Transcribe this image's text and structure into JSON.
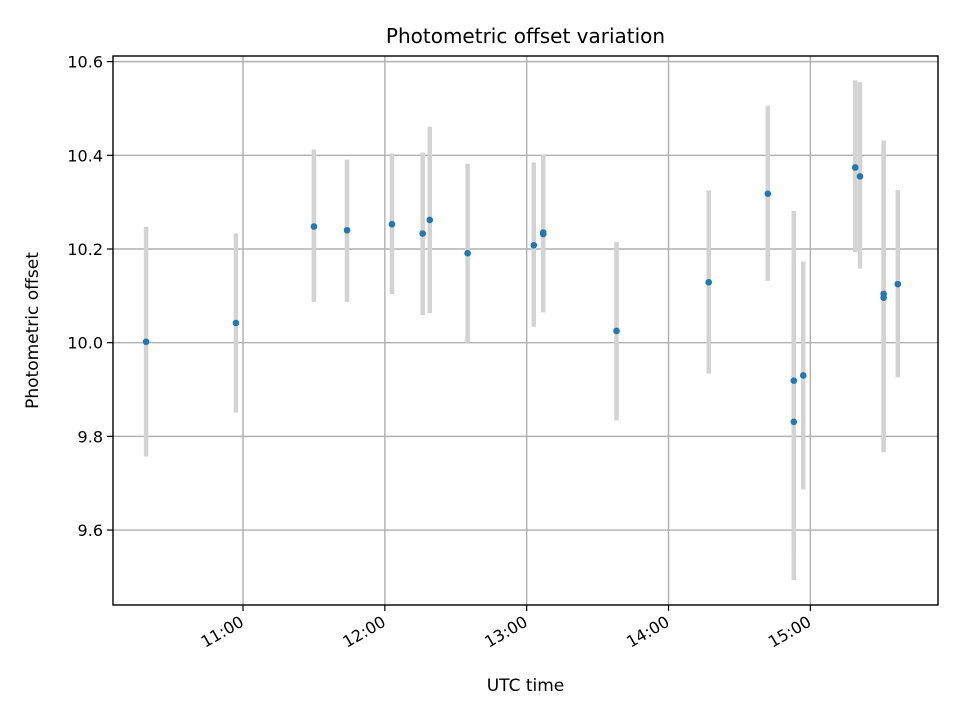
{
  "chart_data": {
    "type": "scatter",
    "title": "Photometric offset variation",
    "xlabel": "UTC time",
    "ylabel": "Photometric offset",
    "xlim": [
      "10:05",
      "15:54"
    ],
    "ylim": [
      9.44,
      10.612
    ],
    "x_ticks": [
      "11:00",
      "12:00",
      "13:00",
      "14:00",
      "15:00"
    ],
    "y_ticks": [
      9.6,
      9.8,
      10.0,
      10.2,
      10.4,
      10.6
    ],
    "grid": true,
    "series": [
      {
        "marker_color": "#1f77b4",
        "errorbar_color": "#d3d3d3",
        "points": [
          {
            "x": "10:19",
            "y": 10.002,
            "low": 9.757,
            "high": 10.247
          },
          {
            "x": "10:57",
            "y": 10.042,
            "low": 9.851,
            "high": 10.233
          },
          {
            "x": "11:30",
            "y": 10.248,
            "low": 10.087,
            "high": 10.412
          },
          {
            "x": "11:44",
            "y": 10.24,
            "low": 10.087,
            "high": 10.391
          },
          {
            "x": "12:03",
            "y": 10.253,
            "low": 10.104,
            "high": 10.404
          },
          {
            "x": "12:16",
            "y": 10.233,
            "low": 10.059,
            "high": 10.406
          },
          {
            "x": "12:19",
            "y": 10.262,
            "low": 10.063,
            "high": 10.461
          },
          {
            "x": "12:35",
            "y": 10.191,
            "low": 10.0,
            "high": 10.382
          },
          {
            "x": "13:03",
            "y": 10.208,
            "low": 10.034,
            "high": 10.385
          },
          {
            "x": "13:07",
            "y": 10.232,
            "low": 10.065,
            "high": 10.4
          },
          {
            "x": "13:07",
            "y": 10.235,
            "low": 10.065,
            "high": 10.4
          },
          {
            "x": "13:38",
            "y": 10.025,
            "low": 9.834,
            "high": 10.215
          },
          {
            "x": "14:17",
            "y": 10.129,
            "low": 9.934,
            "high": 10.325
          },
          {
            "x": "14:42",
            "y": 10.318,
            "low": 10.132,
            "high": 10.506
          },
          {
            "x": "14:53",
            "y": 9.919,
            "low": 9.557,
            "high": 10.281
          },
          {
            "x": "14:53",
            "y": 9.831,
            "low": 9.493,
            "high": 10.169
          },
          {
            "x": "14:57",
            "y": 9.93,
            "low": 9.687,
            "high": 10.173
          },
          {
            "x": "15:19",
            "y": 10.374,
            "low": 10.193,
            "high": 10.56
          },
          {
            "x": "15:21",
            "y": 10.355,
            "low": 10.158,
            "high": 10.556
          },
          {
            "x": "15:31",
            "y": 10.104,
            "low": 9.776,
            "high": 10.432
          },
          {
            "x": "15:31",
            "y": 10.096,
            "low": 9.766,
            "high": 10.426
          },
          {
            "x": "15:37",
            "y": 10.125,
            "low": 9.926,
            "high": 10.326
          }
        ]
      }
    ]
  }
}
